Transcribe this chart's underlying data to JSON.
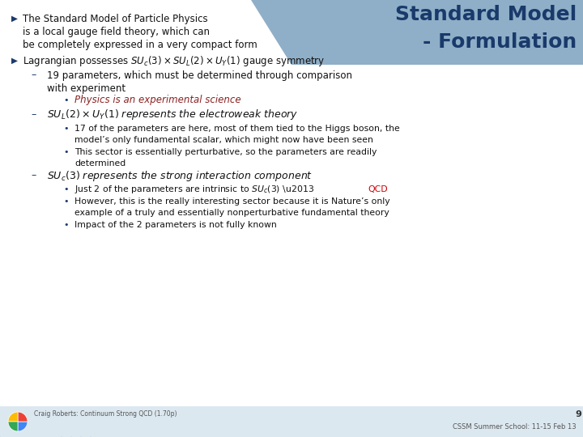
{
  "title_line1": "Standard Model",
  "title_line2": "- Formulation",
  "title_color": "#1a3a6b",
  "banner_color": "#8fafc8",
  "slide_bg": "#ffffff",
  "footer_text": "Craig Roberts: Continuum Strong QCD (1.70p)",
  "footer_right": "CSSM Summer School: 11-15 Feb 13",
  "page_num": "9",
  "accent_color": "#1a3a6b",
  "body_color": "#111111",
  "italic_red_color": "#8b2020",
  "red_color": "#cc0000",
  "footer_bg": "#dce8f0",
  "logo_colors": [
    "#4285F4",
    "#EA4335",
    "#FBBC05",
    "#34A853"
  ]
}
